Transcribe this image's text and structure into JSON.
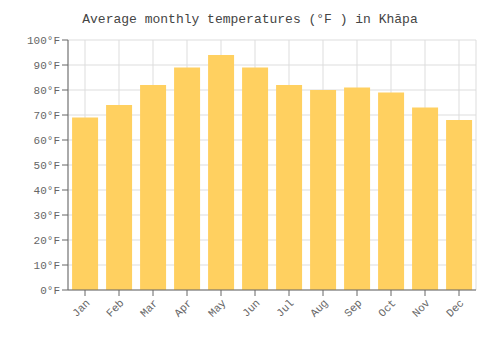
{
  "chart_data": {
    "type": "bar",
    "title": "Average monthly temperatures (°F ) in Khāpa",
    "categories": [
      "Jan",
      "Feb",
      "Mar",
      "Apr",
      "May",
      "Jun",
      "Jul",
      "Aug",
      "Sep",
      "Oct",
      "Nov",
      "Dec"
    ],
    "values": [
      69,
      74,
      82,
      89,
      94,
      89,
      82,
      80,
      81,
      79,
      73,
      68
    ],
    "color": "#FFD060",
    "ylim": [
      0,
      100
    ],
    "yticks": [
      {
        "value": 0,
        "label": "0°F"
      },
      {
        "value": 10,
        "label": "10°F"
      },
      {
        "value": 20,
        "label": "20°F"
      },
      {
        "value": 30,
        "label": "30°F"
      },
      {
        "value": 40,
        "label": "40°F"
      },
      {
        "value": 50,
        "label": "50°F"
      },
      {
        "value": 60,
        "label": "60°F"
      },
      {
        "value": 70,
        "label": "70°F"
      },
      {
        "value": 80,
        "label": "80°F"
      },
      {
        "value": 90,
        "label": "90°F"
      },
      {
        "value": 100,
        "label": "100°F"
      }
    ],
    "grid": true
  }
}
